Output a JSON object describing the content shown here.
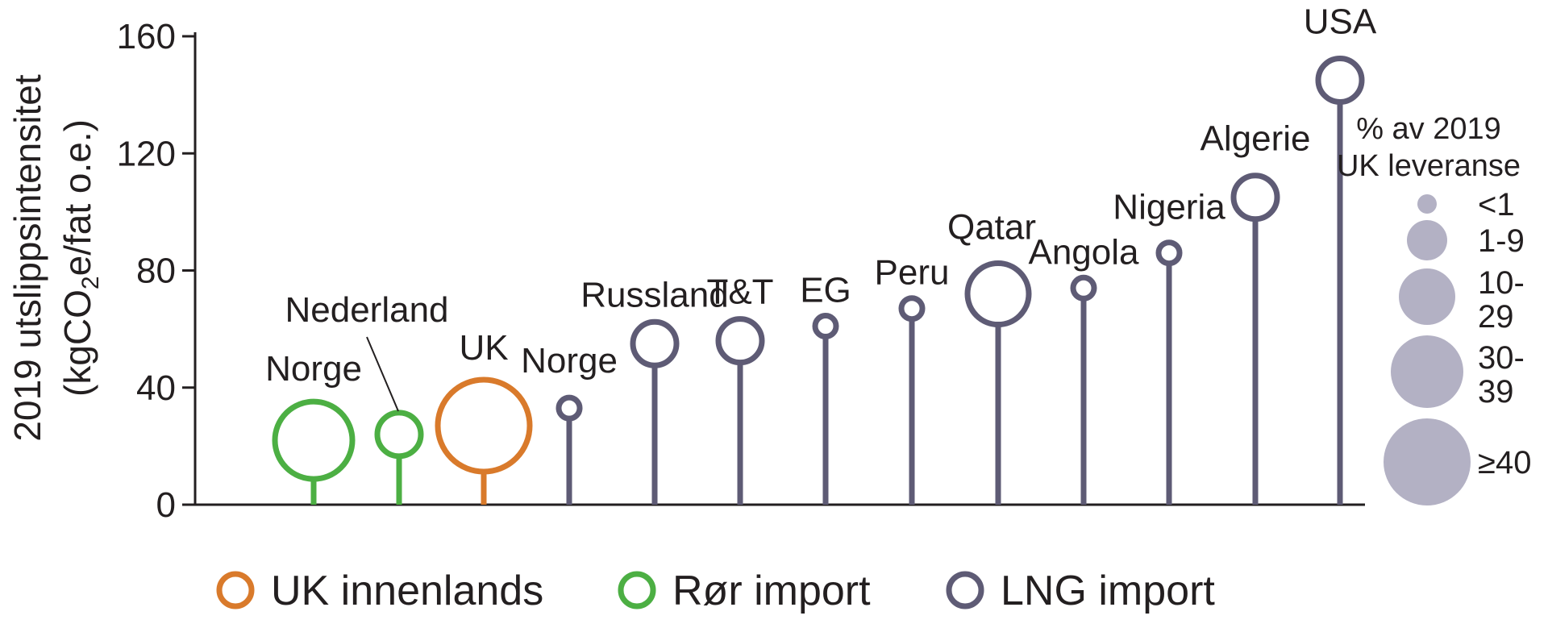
{
  "chart_data": {
    "type": "lollipop",
    "ylabel_line1": "2019 utslippsintensitet",
    "ylabel_line2_pre": "(kgCO",
    "ylabel_line2_sub": "2",
    "ylabel_line2_post": "e/fat o.e.)",
    "ylim": [
      0,
      160
    ],
    "yticks": [
      0,
      40,
      80,
      120,
      160
    ],
    "grid": false,
    "points": [
      {
        "label": "Norge",
        "value": 22,
        "group": "pipe",
        "size_class": "30-39"
      },
      {
        "label": "Nederland",
        "value": 24,
        "group": "pipe",
        "size_class": "1-9"
      },
      {
        "label": "UK",
        "value": 27,
        "group": "uk",
        "size_class": ">=40"
      },
      {
        "label": "Norge",
        "value": 33,
        "group": "lng",
        "size_class": "<1"
      },
      {
        "label": "Russland",
        "value": 55,
        "group": "lng",
        "size_class": "1-9"
      },
      {
        "label": "T&T",
        "value": 56,
        "group": "lng",
        "size_class": "1-9"
      },
      {
        "label": "EG",
        "value": 61,
        "group": "lng",
        "size_class": "<1"
      },
      {
        "label": "Peru",
        "value": 67,
        "group": "lng",
        "size_class": "<1"
      },
      {
        "label": "Qatar",
        "value": 72,
        "group": "lng",
        "size_class": "10-29"
      },
      {
        "label": "Angola",
        "value": 74,
        "group": "lng",
        "size_class": "<1"
      },
      {
        "label": "Nigeria",
        "value": 86,
        "group": "lng",
        "size_class": "<1"
      },
      {
        "label": "Algerie",
        "value": 105,
        "group": "lng",
        "size_class": "1-9"
      },
      {
        "label": "USA",
        "value": 145,
        "group": "lng",
        "size_class": "1-9"
      }
    ],
    "legend": [
      {
        "key": "uk",
        "label": "UK innenlands",
        "color": "#d97a2b"
      },
      {
        "key": "pipe",
        "label": "Rør import",
        "color": "#4caf43"
      },
      {
        "key": "lng",
        "label": "LNG import",
        "color": "#5e5b75"
      }
    ],
    "size_legend": {
      "title_line1": "% av 2019",
      "title_line2": "UK leveranse",
      "fill_color": "#b3b1c4",
      "items": [
        {
          "label_line1": "<1",
          "label_line2": ""
        },
        {
          "label_line1": "1-9",
          "label_line2": ""
        },
        {
          "label_line1": "10-",
          "label_line2": "29"
        },
        {
          "label_line1": "30-",
          "label_line2": "39"
        },
        {
          "label_line1": "≥40",
          "label_line2": ""
        }
      ]
    },
    "axis_color": "#231f20"
  }
}
